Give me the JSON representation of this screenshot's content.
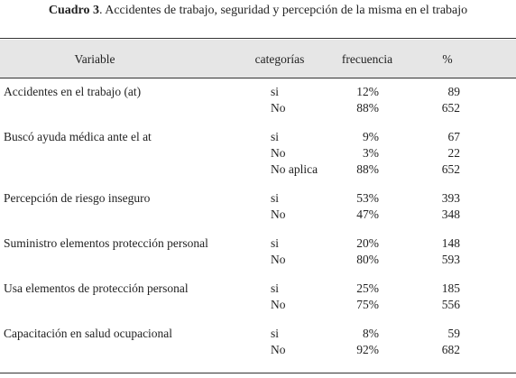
{
  "title": {
    "label": "Cuadro 3",
    "text": ". Accidentes de trabajo, seguridad y percepción de la misma en el trabajo"
  },
  "table": {
    "header": [
      "Variable",
      "categorías",
      "frecuencia",
      "%"
    ],
    "groups": [
      {
        "variable": "Accidentes en el trabajo (at)",
        "rows": [
          [
            "si",
            "12%",
            89
          ],
          [
            "No",
            "88%",
            652
          ]
        ]
      },
      {
        "variable": "Buscó ayuda médica ante el at",
        "rows": [
          [
            "si",
            "9%",
            67
          ],
          [
            "No",
            "3%",
            22
          ],
          [
            "No aplica",
            "88%",
            652
          ]
        ]
      },
      {
        "variable": "Percepción de riesgo inseguro",
        "rows": [
          [
            "si",
            "53%",
            393
          ],
          [
            "No",
            "47%",
            348
          ]
        ]
      },
      {
        "variable": "Suministro elementos protección personal",
        "rows": [
          [
            "si",
            "20%",
            148
          ],
          [
            "No",
            "80%",
            593
          ]
        ]
      },
      {
        "variable": "Usa elementos de protección personal",
        "rows": [
          [
            "si",
            "25%",
            185
          ],
          [
            "No",
            "75%",
            556
          ]
        ]
      },
      {
        "variable": "Capacitación en salud ocupacional",
        "rows": [
          [
            "si",
            "8%",
            59
          ],
          [
            "No",
            "92%",
            682
          ]
        ]
      }
    ]
  }
}
